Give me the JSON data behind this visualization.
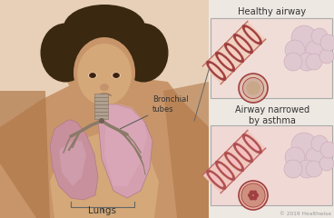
{
  "labels": {
    "bronchial_tubes": "Bronchial\ntubes",
    "lungs": "Lungs",
    "healthy_airway": "Healthy airway",
    "airway_narrowed": "Airway narrowed\nby asthma",
    "copyright": "© 2019 Healthwise"
  },
  "skin_light": "#d4a878",
  "skin_mid": "#c8956a",
  "skin_shadow": "#b07848",
  "skin_neck": "#c8956a",
  "hair_color": "#3a2810",
  "lung_left_fill": "#c8909c",
  "lung_right_fill": "#d4a0b0",
  "lung_edge": "#b07888",
  "trachea_fill": "#a09080",
  "trachea_edge": "#806050",
  "bronchi_color": "#8a7a68",
  "bg_body": "#e8d0b8",
  "bg_right": "#ede8e2",
  "box_healthy_bg": "#f0ddd8",
  "box_narrow_bg": "#f0d8d4",
  "box_edge": "#aaaaaa",
  "airway_tube_light": "#f0d0c0",
  "airway_tube_dark": "#c07060",
  "airway_ring_outer": "#a04040",
  "airway_ring_inner": "#f4cfc0",
  "airway_lumen_healthy": "#c8a888",
  "airway_lumen_narrow": "#d08080",
  "bubble_fill": "#e0c8d0",
  "bubble_edge": "#c8a8b8",
  "label_color": "#333333",
  "annot_line_color": "#555555"
}
